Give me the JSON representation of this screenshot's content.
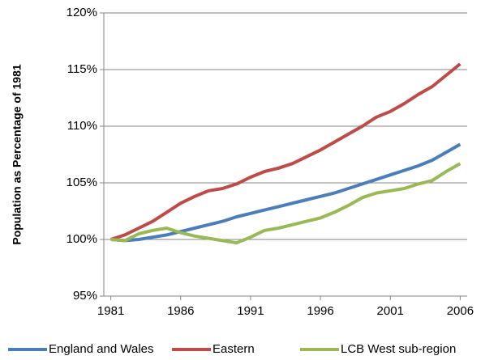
{
  "chart_data": {
    "type": "line",
    "y_label": "Population as Percentage of 1981",
    "x": [
      1981,
      1982,
      1983,
      1984,
      1985,
      1986,
      1987,
      1988,
      1989,
      1990,
      1991,
      1992,
      1993,
      1994,
      1995,
      1996,
      1997,
      1998,
      1999,
      2000,
      2001,
      2002,
      2003,
      2004,
      2005,
      2006
    ],
    "series": [
      {
        "name": "England and Wales",
        "color": "#4a7ebb",
        "values": [
          100,
          99.9,
          100,
          100.2,
          100.4,
          100.7,
          101.0,
          101.3,
          101.6,
          102.0,
          102.3,
          102.6,
          102.9,
          103.2,
          103.5,
          103.8,
          104.1,
          104.5,
          104.9,
          105.3,
          105.7,
          106.1,
          106.5,
          107.0,
          107.7,
          108.4
        ]
      },
      {
        "name": "Eastern",
        "color": "#be4b48",
        "values": [
          100,
          100.4,
          101.0,
          101.6,
          102.4,
          103.2,
          103.8,
          104.3,
          104.5,
          104.9,
          105.5,
          106.0,
          106.3,
          106.7,
          107.3,
          107.9,
          108.6,
          109.3,
          110.0,
          110.8,
          111.3,
          112.0,
          112.8,
          113.5,
          114.5,
          115.5
        ]
      },
      {
        "name": "LCB West sub-region",
        "color": "#98b954",
        "values": [
          100,
          99.9,
          100.5,
          100.8,
          101.0,
          100.6,
          100.3,
          100.1,
          99.9,
          99.7,
          100.2,
          100.8,
          101.0,
          101.3,
          101.6,
          101.9,
          102.4,
          103.0,
          103.7,
          104.1,
          104.3,
          104.5,
          104.9,
          105.2,
          106.0,
          106.7
        ]
      }
    ],
    "xlim": [
      1980.5,
      2006.5
    ],
    "xticks": [
      1981,
      1986,
      1991,
      1996,
      2001,
      2006
    ],
    "ylim": [
      95,
      120
    ],
    "yticks": [
      {
        "value": 95,
        "label": "95%"
      },
      {
        "value": 100,
        "label": "100%"
      },
      {
        "value": 105,
        "label": "105%"
      },
      {
        "value": 110,
        "label": "110%"
      },
      {
        "value": 115,
        "label": "115%"
      },
      {
        "value": 120,
        "label": "120%"
      }
    ],
    "grid": true,
    "legend": "bottom"
  }
}
